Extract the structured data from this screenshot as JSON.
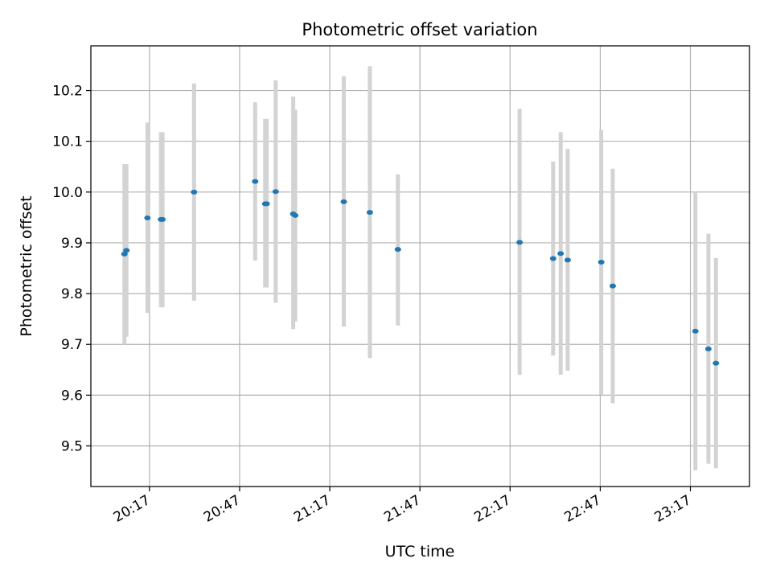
{
  "chart_data": {
    "type": "scatter",
    "title": "Photometric offset variation",
    "xlabel": "UTC time",
    "ylabel": "Photometric offset",
    "x_ticks": [
      "20:17",
      "20:47",
      "21:17",
      "21:47",
      "22:17",
      "22:47",
      "23:17"
    ],
    "y_ticks": [
      "9.5",
      "9.6",
      "9.7",
      "9.8",
      "9.9",
      "10.0",
      "10.1",
      "10.2"
    ],
    "xlim": [
      "19:57:30",
      "23:36:40"
    ],
    "ylim": [
      9.42,
      10.288
    ],
    "grid": true,
    "marker_color": "#1f77b4",
    "errorbar_color": "#d3d3d3",
    "points": [
      {
        "t": "20:08:40",
        "y": 9.878,
        "lo": 9.7,
        "hi": 10.055
      },
      {
        "t": "20:09:20",
        "y": 9.885,
        "lo": 9.715,
        "hi": 10.055
      },
      {
        "t": "20:16:20",
        "y": 9.949,
        "lo": 9.762,
        "hi": 10.137
      },
      {
        "t": "20:20:50",
        "y": 9.946,
        "lo": 9.773,
        "hi": 10.118
      },
      {
        "t": "20:21:20",
        "y": 9.946,
        "lo": 9.773,
        "hi": 10.118
      },
      {
        "t": "20:31:50",
        "y": 10.0,
        "lo": 9.786,
        "hi": 10.214
      },
      {
        "t": "20:52:10",
        "y": 10.021,
        "lo": 9.865,
        "hi": 10.177
      },
      {
        "t": "20:55:30",
        "y": 9.977,
        "lo": 9.812,
        "hi": 10.144
      },
      {
        "t": "20:56:00",
        "y": 9.977,
        "lo": 9.812,
        "hi": 10.144
      },
      {
        "t": "20:59:00",
        "y": 10.001,
        "lo": 9.782,
        "hi": 10.22
      },
      {
        "t": "21:04:50",
        "y": 9.957,
        "lo": 9.73,
        "hi": 10.188
      },
      {
        "t": "21:05:30",
        "y": 9.954,
        "lo": 9.745,
        "hi": 10.162
      },
      {
        "t": "21:21:40",
        "y": 9.981,
        "lo": 9.735,
        "hi": 10.228
      },
      {
        "t": "21:30:20",
        "y": 9.96,
        "lo": 9.673,
        "hi": 10.248
      },
      {
        "t": "21:39:40",
        "y": 9.887,
        "lo": 9.737,
        "hi": 10.035
      },
      {
        "t": "22:20:10",
        "y": 9.901,
        "lo": 9.64,
        "hi": 10.164
      },
      {
        "t": "22:31:20",
        "y": 9.869,
        "lo": 9.678,
        "hi": 10.06
      },
      {
        "t": "22:33:50",
        "y": 9.879,
        "lo": 9.64,
        "hi": 10.118
      },
      {
        "t": "22:36:10",
        "y": 9.866,
        "lo": 9.648,
        "hi": 10.085
      },
      {
        "t": "22:47:20",
        "y": 9.862,
        "lo": 9.601,
        "hi": 10.122
      },
      {
        "t": "22:51:10",
        "y": 9.815,
        "lo": 9.584,
        "hi": 10.046
      },
      {
        "t": "23:18:40",
        "y": 9.726,
        "lo": 9.452,
        "hi": 10.0
      },
      {
        "t": "23:23:00",
        "y": 9.691,
        "lo": 9.465,
        "hi": 9.918
      },
      {
        "t": "23:25:30",
        "y": 9.663,
        "lo": 9.456,
        "hi": 9.87
      }
    ]
  }
}
